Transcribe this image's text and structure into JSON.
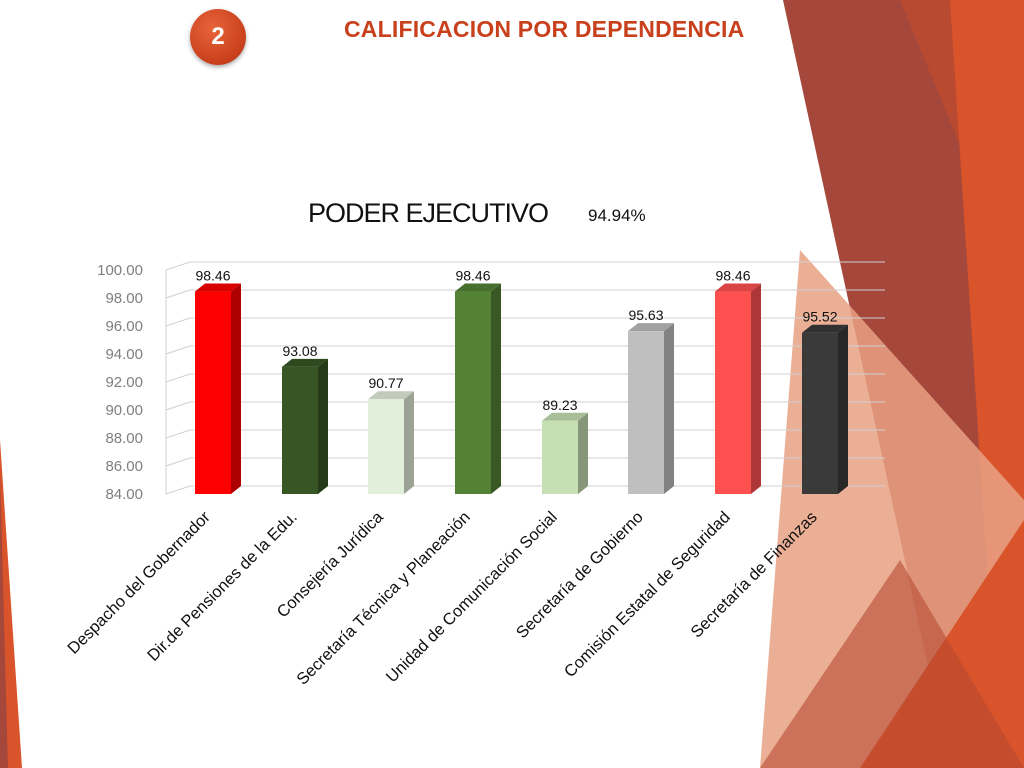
{
  "slide": {
    "number": "2",
    "title": "CALIFICACION POR DEPENDENCIA"
  },
  "colors": {
    "accent": "#c8401c",
    "decoration": [
      "#a5473b",
      "#d9542a",
      "#e8a184"
    ]
  },
  "chart_data": {
    "type": "bar",
    "style": "3d-column",
    "title": "PODER EJECUTIVO",
    "subtitle": "94.94%",
    "categories": [
      "Despacho del Gobernador",
      "Dir.de Pensiones de la Edu.",
      "Consejería Jurídica",
      "Secretaría Técnica y Planeación",
      "Unidad de Comunicación Social",
      "Secretaría de Gobierno",
      "Comisión Estatal de Seguridad",
      "Secretaría de Finanzas"
    ],
    "values": [
      98.46,
      93.08,
      90.77,
      98.46,
      89.23,
      95.63,
      98.46,
      95.52
    ],
    "value_labels": [
      "98.46",
      "93.08",
      "90.77",
      "98.46",
      "89.23",
      "95.63",
      "98.46",
      "95.52"
    ],
    "bar_colors": [
      "#ff0000",
      "#375623",
      "#e2efda",
      "#548235",
      "#c6e0b4",
      "#bfbfbf",
      "#ff5050",
      "#3a3a3a"
    ],
    "y_ticks": [
      "84.00",
      "86.00",
      "88.00",
      "90.00",
      "92.00",
      "94.00",
      "96.00",
      "98.00",
      "100.00"
    ],
    "ylim": [
      84,
      100
    ],
    "grid": true,
    "legend": "none"
  }
}
